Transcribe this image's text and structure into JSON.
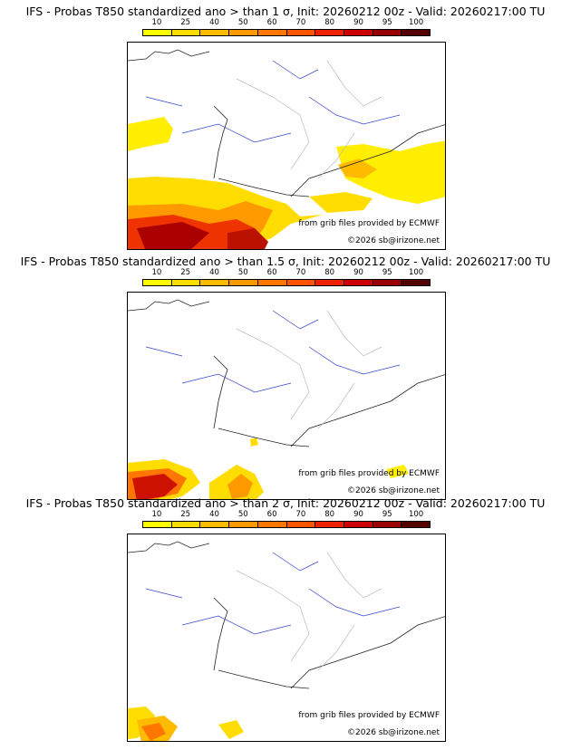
{
  "colorbar": {
    "ticks": [
      "10",
      "25",
      "40",
      "50",
      "60",
      "70",
      "80",
      "90",
      "95",
      "100"
    ],
    "colors": [
      "#ffff00",
      "#ffdd00",
      "#ffbb00",
      "#ff9900",
      "#ff7700",
      "#ff5500",
      "#ee2200",
      "#cc0000",
      "#990000",
      "#550000"
    ]
  },
  "panels": [
    {
      "title": "IFS - Probas T850  standardized ano > than 1 σ, Init: 20260212 00z - Valid: 20260217:00 TU",
      "credit_source": "from grib files provided by ECMWF",
      "credit_copyright": "©2026 sb@irizone.net"
    },
    {
      "title": "IFS - Probas T850  standardized ano > than 1.5 σ, Init: 20260212 00z - Valid: 20260217:00 TU",
      "credit_source": "from grib files provided by ECMWF",
      "credit_copyright": "©2026 sb@irizone.net"
    },
    {
      "title": "IFS - Probas T850  standardized ano > than 2 σ, Init: 20260212 00z - Valid: 20260217:00 TU",
      "credit_source": "from grib files provided by ECMWF",
      "credit_copyright": "©2026 sb@irizone.net"
    }
  ]
}
